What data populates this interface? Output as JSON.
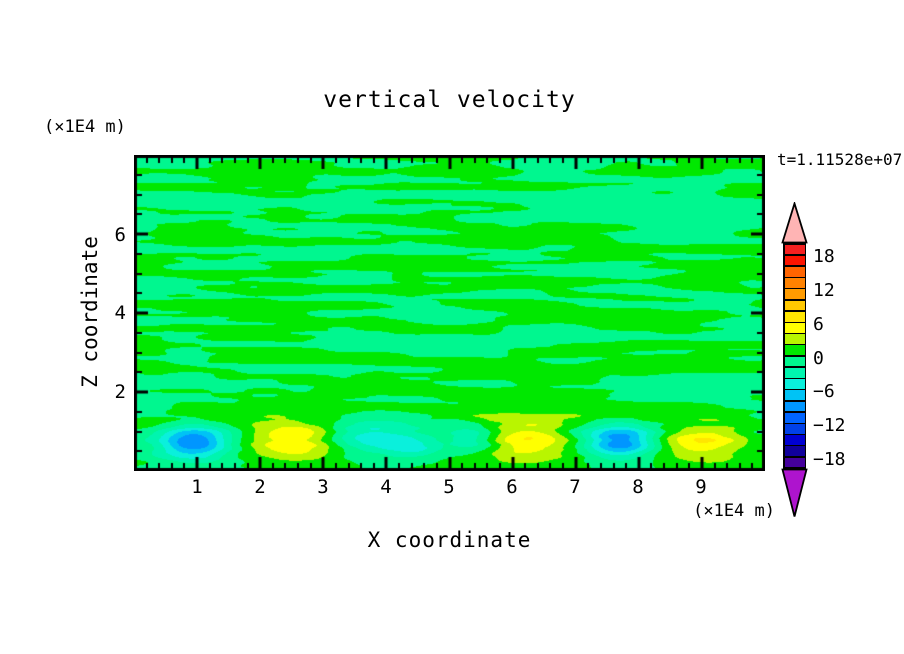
{
  "title": "vertical velocity",
  "time_label": "t=1.11528e+07",
  "axes": {
    "x": {
      "label": "X coordinate",
      "unit": "(×1E4 m)",
      "tick_labels": [
        "1",
        "2",
        "3",
        "4",
        "5",
        "6",
        "7",
        "8",
        "9"
      ]
    },
    "z": {
      "label": "Z coordinate",
      "unit": "(×1E4 m)",
      "tick_labels": [
        "6",
        "4",
        "2"
      ]
    }
  },
  "colorbar": {
    "tick_labels": [
      "18",
      "12",
      "6",
      "0",
      "−6",
      "−12",
      "−18"
    ],
    "over_color": "#FFB4B4",
    "under_color": "#AE14CE"
  },
  "chart_data": {
    "type": "filled-contour",
    "title": "vertical velocity",
    "xlabel": "X coordinate",
    "ylabel": "Z coordinate",
    "x_unit": "(×1E4 m)",
    "z_unit": "(×1E4 m)",
    "time": "t=1.11528e+07",
    "x_range": [
      0,
      10
    ],
    "z_range": [
      0,
      8
    ],
    "x_major_ticks": [
      1,
      2,
      3,
      4,
      5,
      6,
      7,
      8,
      9
    ],
    "x_minor_step": 0.2,
    "z_major_ticks": [
      2,
      4,
      6
    ],
    "z_minor_step": 0.5,
    "contour_interval": 2,
    "level_min": -20,
    "level_max": 20,
    "colorbar_labels": [
      18,
      12,
      6,
      0,
      -6,
      -12,
      -18
    ],
    "palette": [
      "#44009B",
      "#10009B",
      "#0000D2",
      "#0041E8",
      "#0064FF",
      "#0096FF",
      "#00C3F5",
      "#0AF0DC",
      "#00F5AF",
      "#00F78F",
      "#00E800",
      "#B9F500",
      "#FFFF00",
      "#FFE600",
      "#FFC800",
      "#FF9B00",
      "#FF8200",
      "#FF6400",
      "#FB1400",
      "#F52020"
    ],
    "over_color": "#FFB4B4",
    "under_color": "#AE14CE",
    "background_streaks": {
      "description": "horizontal turbulent streaks alternating between -2..0 and 0..2 bands",
      "amplitude": 1.9,
      "colors": [
        "#00F78F",
        "#00E800"
      ]
    },
    "features": [
      {
        "kind": "downdraft",
        "x": 0.95,
        "z": 0.72,
        "peak": -9.7,
        "rx": 0.55,
        "rz": 0.42
      },
      {
        "kind": "updraft",
        "x": 2.52,
        "z": 0.78,
        "peak": 5.9,
        "rx": 0.72,
        "rz": 0.5
      },
      {
        "kind": "downdraft",
        "x": 3.8,
        "z": 0.85,
        "peak": -5.2,
        "rx": 0.7,
        "rz": 0.45
      },
      {
        "kind": "downdraft",
        "x": 4.45,
        "z": 0.6,
        "peak": -3.6,
        "rx": 0.4,
        "rz": 0.28
      },
      {
        "kind": "downdraft",
        "x": 5.4,
        "z": 0.8,
        "peak": -4.6,
        "rx": 0.45,
        "rz": 0.34
      },
      {
        "kind": "updraft",
        "x": 6.18,
        "z": 0.78,
        "peak": 6.15,
        "rx": 0.78,
        "rz": 0.52
      },
      {
        "kind": "downdraft",
        "x": 7.7,
        "z": 0.75,
        "peak": -9.7,
        "rx": 0.55,
        "rz": 0.42
      },
      {
        "kind": "updraft",
        "x": 9.0,
        "z": 0.78,
        "peak": 5.3,
        "rx": 0.68,
        "rz": 0.48
      }
    ]
  }
}
